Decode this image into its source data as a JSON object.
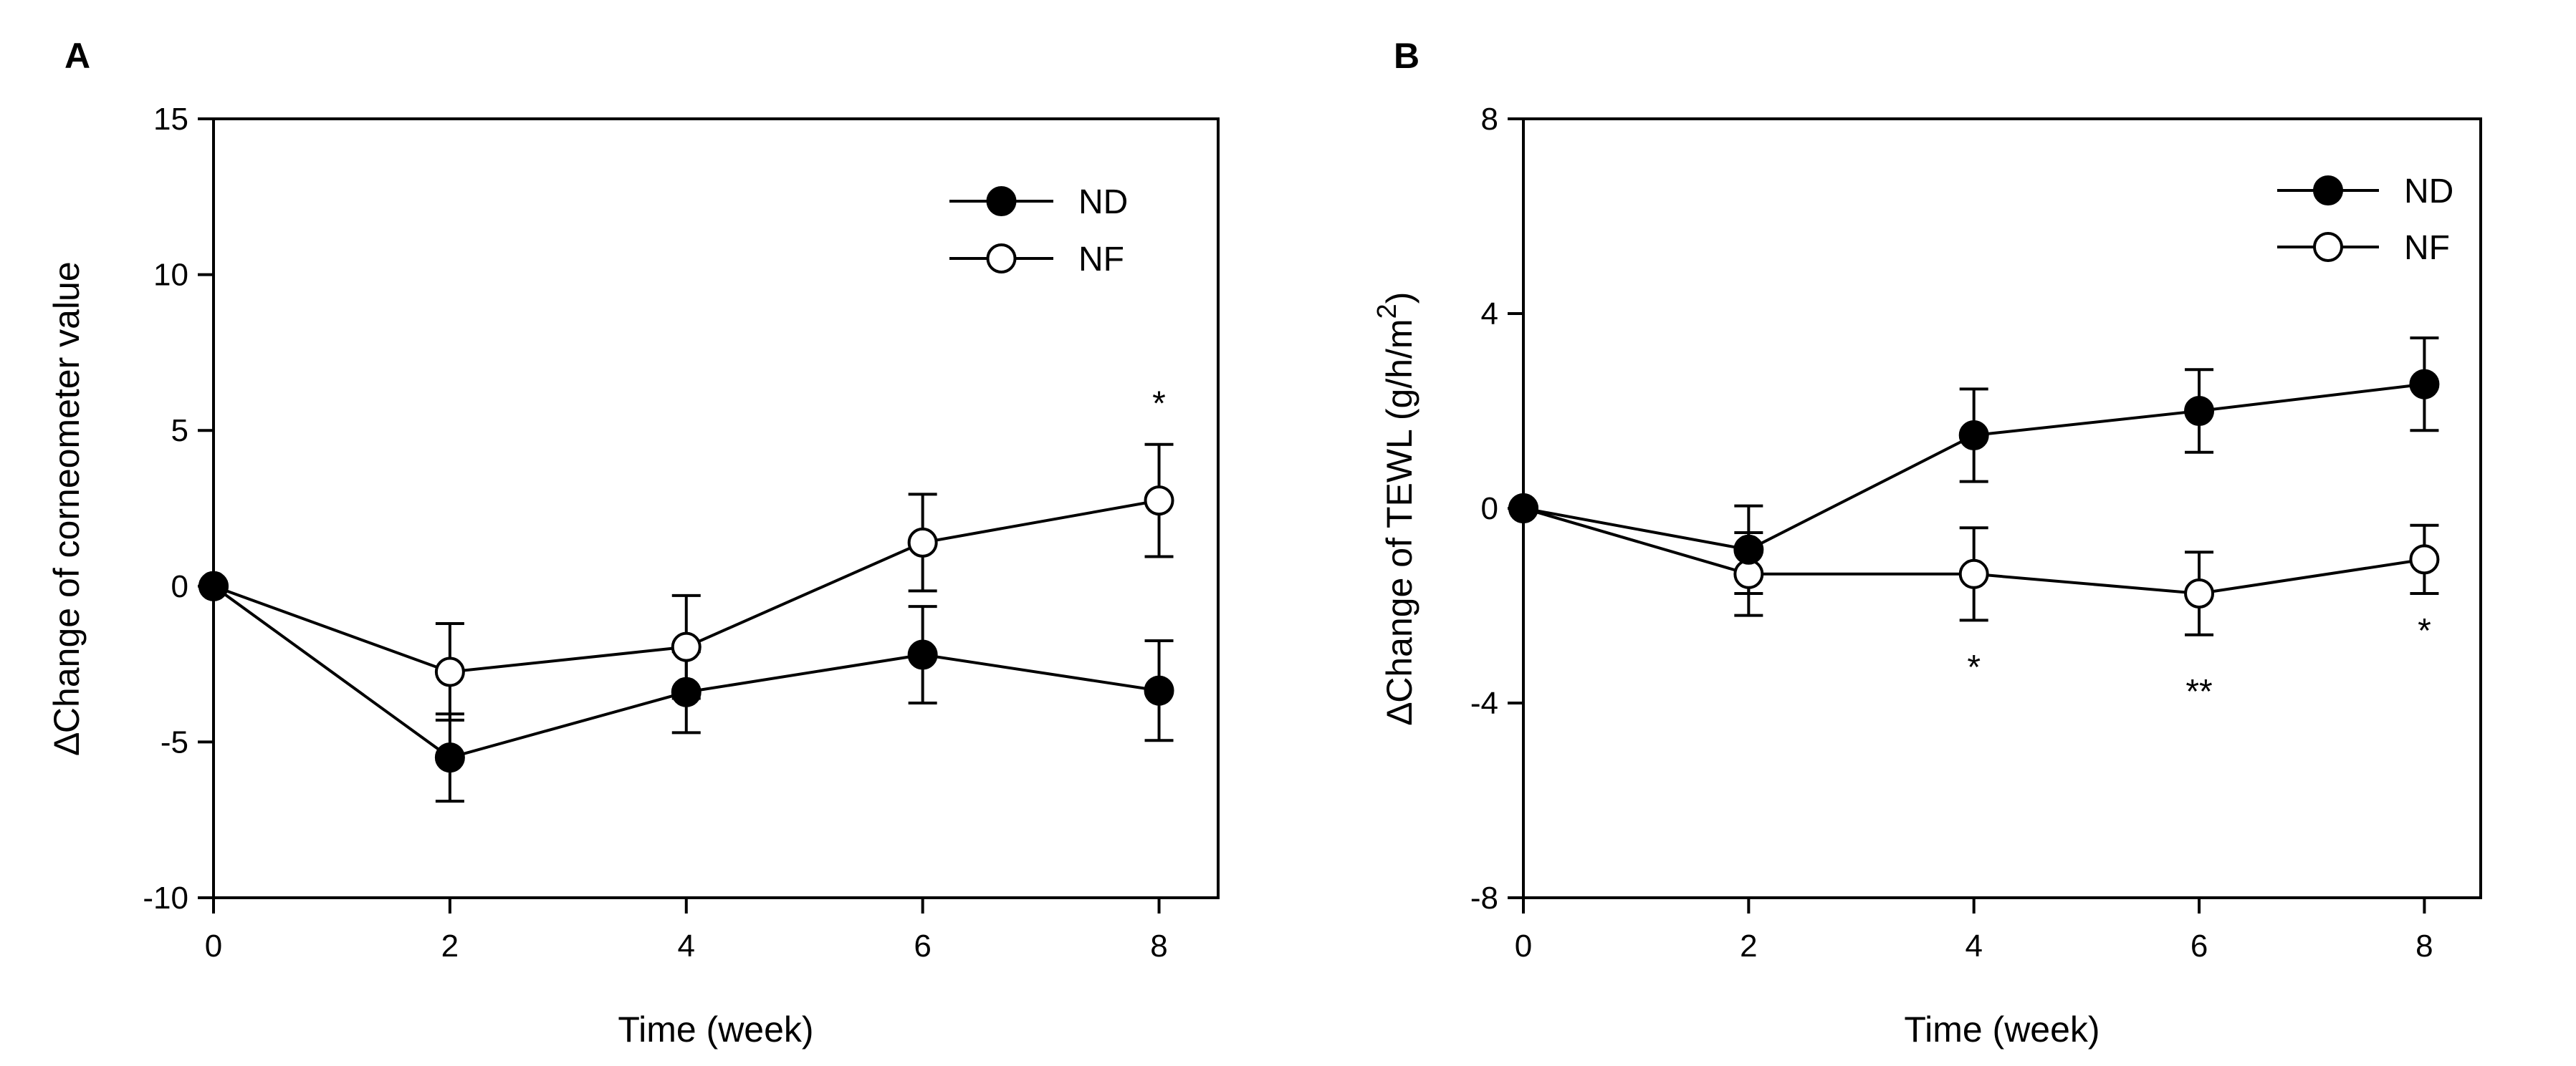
{
  "chart_data": [
    {
      "type": "line",
      "panel_label": "A",
      "xlabel": "Time (week)",
      "ylabel_prefix": "∆",
      "ylabel": "Change of corneometer value",
      "xlim": [
        0,
        8.5
      ],
      "ylim": [
        -10,
        15
      ],
      "x_ticks": [
        0,
        2,
        4,
        6,
        8
      ],
      "y_ticks": [
        -10,
        -5,
        0,
        5,
        10,
        15
      ],
      "legend_position": "top-right",
      "series": [
        {
          "name": "ND",
          "marker": "filled-circle",
          "x": [
            0,
            2,
            4,
            6,
            8
          ],
          "y": [
            0,
            -5.5,
            -3.4,
            -2.2,
            -3.35
          ],
          "err": [
            0,
            1.4,
            1.3,
            1.55,
            1.6
          ]
        },
        {
          "name": "NF",
          "marker": "open-circle",
          "x": [
            0,
            2,
            4,
            6,
            8
          ],
          "y": [
            0,
            -2.75,
            -1.95,
            1.4,
            2.75
          ],
          "err": [
            0,
            1.55,
            1.65,
            1.55,
            1.8
          ]
        }
      ],
      "annotations": [
        {
          "text": "*",
          "x": 8,
          "y": 5.5
        }
      ]
    },
    {
      "type": "line",
      "panel_label": "B",
      "xlabel": "Time (week)",
      "ylabel_prefix": "∆",
      "ylabel": "Change of TEWL (g/h/m",
      "ylabel_superscript": "2",
      "ylabel_suffix": ")",
      "xlim": [
        0,
        8.5
      ],
      "ylim": [
        -8,
        8
      ],
      "x_ticks": [
        0,
        2,
        4,
        6,
        8
      ],
      "y_ticks": [
        -8,
        -4,
        0,
        4,
        8
      ],
      "legend_position": "top-right",
      "series": [
        {
          "name": "ND",
          "marker": "filled-circle",
          "x": [
            0,
            2,
            4,
            6,
            8
          ],
          "y": [
            0,
            -0.85,
            1.5,
            2.0,
            2.55
          ],
          "err": [
            0,
            0.9,
            0.95,
            0.85,
            0.95
          ]
        },
        {
          "name": "NF",
          "marker": "open-circle",
          "x": [
            0,
            2,
            4,
            6,
            8
          ],
          "y": [
            0,
            -1.35,
            -1.35,
            -1.75,
            -1.05
          ],
          "err": [
            0,
            0.85,
            0.95,
            0.85,
            0.7
          ]
        }
      ],
      "annotations": [
        {
          "text": "*",
          "x": 4,
          "y": -3.5
        },
        {
          "text": "**",
          "x": 6,
          "y": -4.0
        },
        {
          "text": "*",
          "x": 8,
          "y": -2.75
        }
      ]
    }
  ]
}
